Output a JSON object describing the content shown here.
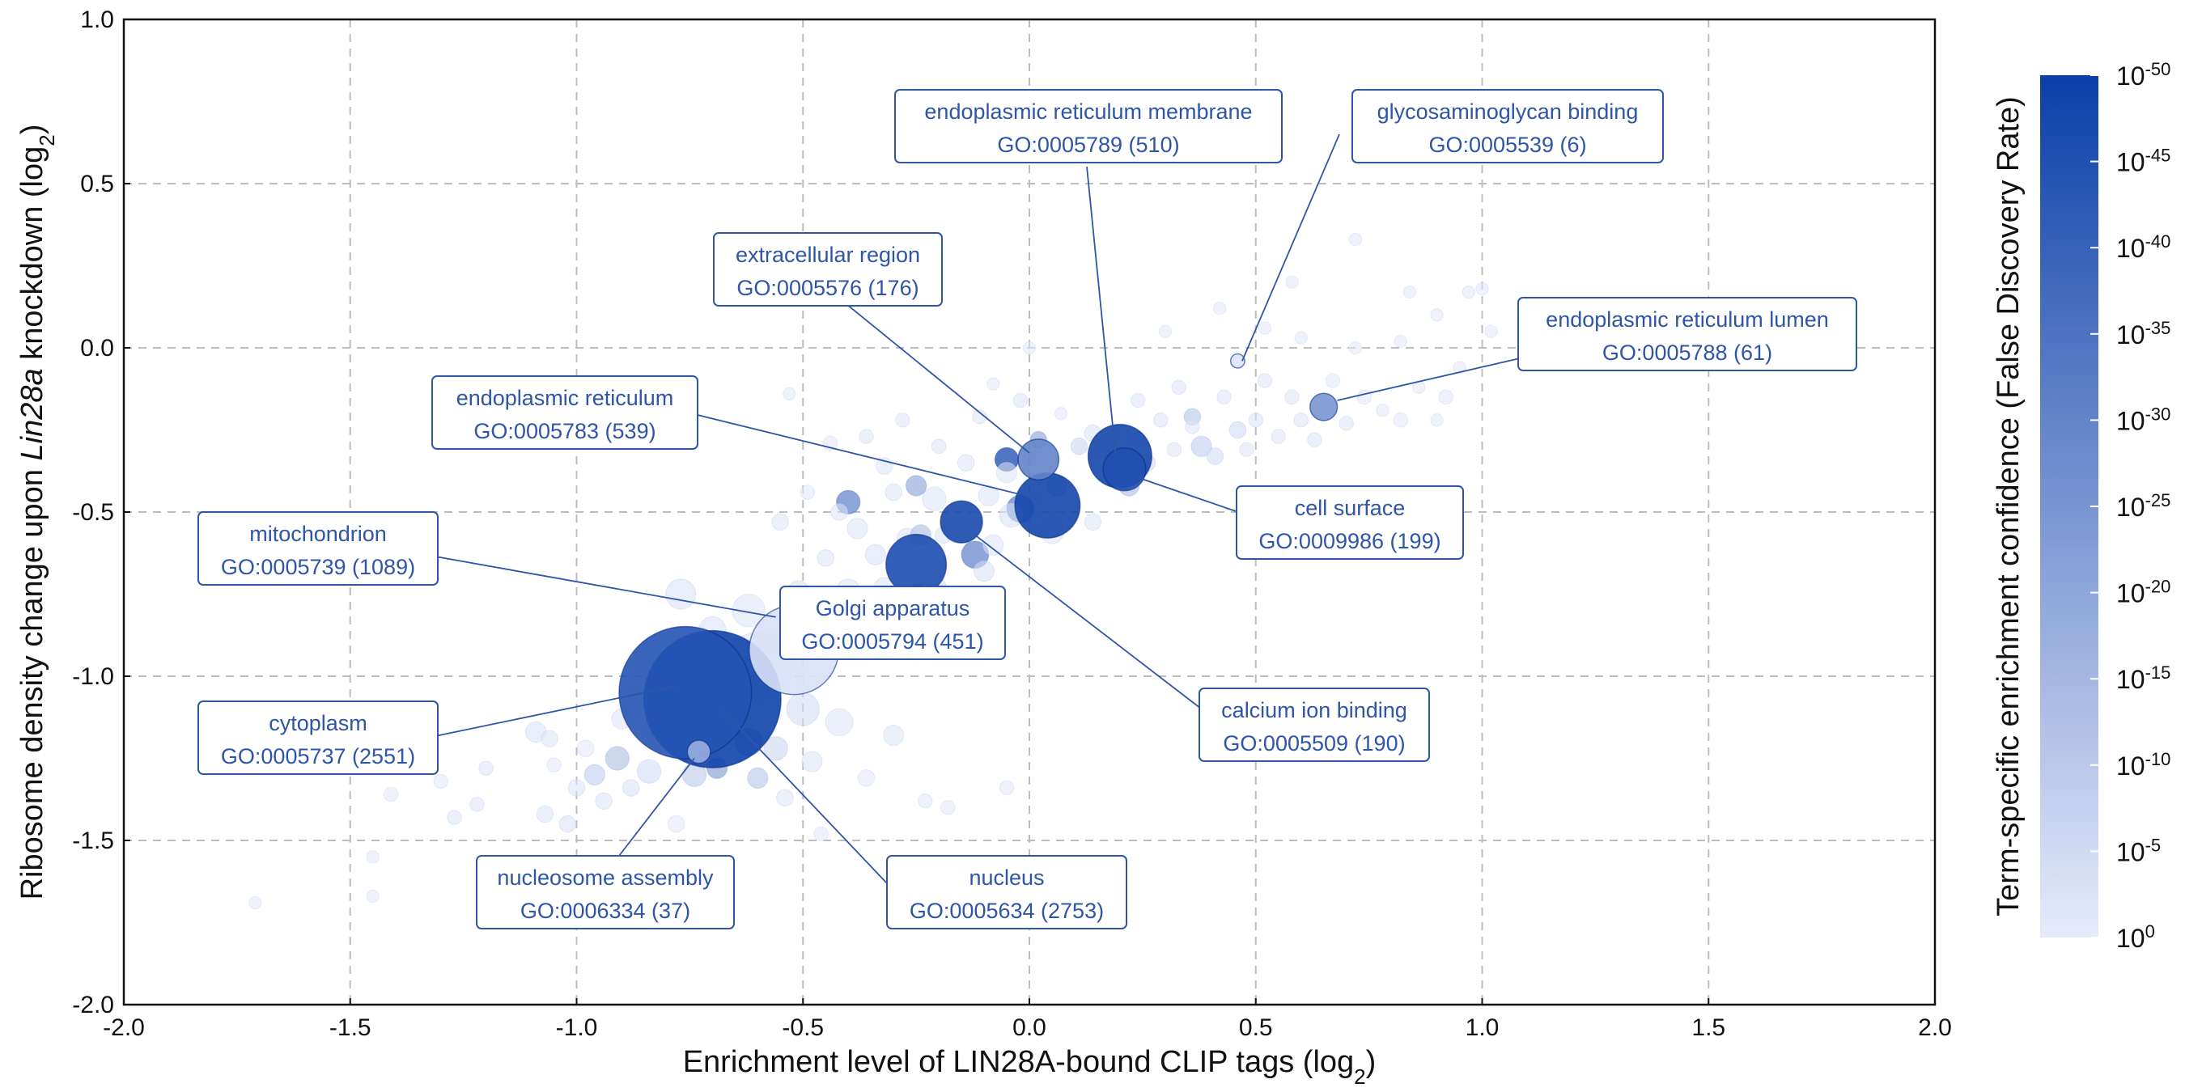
{
  "chart_data": {
    "type": "scatter",
    "title": "",
    "xlabel": "Enrichment level of LIN28A-bound CLIP tags (log2)",
    "ylabel": "Ribosome density change upon Lin28a knockdown (log2)",
    "xlim": [
      -2.0,
      2.0
    ],
    "ylim": [
      -2.0,
      1.0
    ],
    "x_ticks": [
      "-2.0",
      "-1.5",
      "-1.0",
      "-0.5",
      "0.0",
      "0.5",
      "1.0",
      "1.5",
      "2.0"
    ],
    "y_ticks": [
      "1.0",
      "0.5",
      "0.0",
      "-0.5",
      "-1.0",
      "-1.5",
      "-2.0"
    ],
    "grid": true,
    "size_encodes": "number of genes in term",
    "color_encodes": "Term-specific enrichment confidence (False Discovery Rate)",
    "colorbar": {
      "label": "Term-specific enrichment confidence (False Discovery Rate)",
      "ticks": [
        {
          "base": "10",
          "exp": "-50",
          "log10": -50
        },
        {
          "base": "10",
          "exp": "-45",
          "log10": -45
        },
        {
          "base": "10",
          "exp": "-40",
          "log10": -40
        },
        {
          "base": "10",
          "exp": "-35",
          "log10": -35
        },
        {
          "base": "10",
          "exp": "-30",
          "log10": -30
        },
        {
          "base": "10",
          "exp": "-25",
          "log10": -25
        },
        {
          "base": "10",
          "exp": "-20",
          "log10": -20
        },
        {
          "base": "10",
          "exp": "-15",
          "log10": -15
        },
        {
          "base": "10",
          "exp": "-10",
          "log10": -10
        },
        {
          "base": "10",
          "exp": "-5",
          "log10": -5
        },
        {
          "base": "10",
          "exp": "0",
          "log10": 0
        }
      ],
      "color_low": "#e6ebfb",
      "color_high": "#0b3fa8"
    },
    "annotated_terms": [
      {
        "name": "endoplasmic reticulum membrane",
        "id": "GO:0005789 (510)",
        "x": 0.2,
        "y": -0.33,
        "genes": 510,
        "log10_fdr": -48
      },
      {
        "name": "glycosaminoglycan binding",
        "id": "GO:0005539 (6)",
        "x": 0.46,
        "y": -0.04,
        "genes": 6,
        "log10_fdr": -2
      },
      {
        "name": "extracellular region",
        "id": "GO:0005576 (176)",
        "x": 0.02,
        "y": -0.34,
        "genes": 176,
        "log10_fdr": -30
      },
      {
        "name": "endoplasmic reticulum lumen",
        "id": "GO:0005788 (61)",
        "x": 0.65,
        "y": -0.18,
        "genes": 61,
        "log10_fdr": -25
      },
      {
        "name": "endoplasmic reticulum",
        "id": "GO:0005783 (539)",
        "x": 0.04,
        "y": -0.48,
        "genes": 539,
        "log10_fdr": -48
      },
      {
        "name": "cell surface",
        "id": "GO:0009986 (199)",
        "x": 0.21,
        "y": -0.37,
        "genes": 199,
        "log10_fdr": -45
      },
      {
        "name": "mitochondrion",
        "id": "GO:0005739 (1089)",
        "x": -0.52,
        "y": -0.92,
        "genes": 1089,
        "log10_fdr": -3
      },
      {
        "name": "Golgi apparatus",
        "id": "GO:0005794 (451)",
        "x": -0.25,
        "y": -0.66,
        "genes": 451,
        "log10_fdr": -46
      },
      {
        "name": "cytoplasm",
        "id": "GO:0005737 (2551)",
        "x": -0.76,
        "y": -1.05,
        "genes": 2551,
        "log10_fdr": -44
      },
      {
        "name": "calcium ion binding",
        "id": "GO:0005509 (190)",
        "x": -0.15,
        "y": -0.53,
        "genes": 190,
        "log10_fdr": -47
      },
      {
        "name": "nucleosome assembly",
        "id": "GO:0006334 (37)",
        "x": -0.73,
        "y": -1.23,
        "genes": 37,
        "log10_fdr": -18
      },
      {
        "name": "nucleus",
        "id": "GO:0005634 (2753)",
        "x": -0.7,
        "y": -1.07,
        "genes": 2753,
        "log10_fdr": -49
      }
    ],
    "other_terms": [
      {
        "x": -1.71,
        "y": -1.69,
        "genes": 3,
        "log10_fdr": -1
      },
      {
        "x": -1.45,
        "y": -1.55,
        "genes": 3,
        "log10_fdr": -1
      },
      {
        "x": -1.45,
        "y": -1.67,
        "genes": 3,
        "log10_fdr": -1
      },
      {
        "x": -1.41,
        "y": -1.36,
        "genes": 6,
        "log10_fdr": -1
      },
      {
        "x": -1.3,
        "y": -1.32,
        "genes": 6,
        "log10_fdr": -1
      },
      {
        "x": -1.27,
        "y": -1.43,
        "genes": 6,
        "log10_fdr": -2
      },
      {
        "x": -1.22,
        "y": -1.39,
        "genes": 6,
        "log10_fdr": -2
      },
      {
        "x": -1.2,
        "y": -1.28,
        "genes": 6,
        "log10_fdr": -2
      },
      {
        "x": -1.09,
        "y": -1.17,
        "genes": 25,
        "log10_fdr": -3
      },
      {
        "x": -1.06,
        "y": -1.19,
        "genes": 12,
        "log10_fdr": -2
      },
      {
        "x": -1.07,
        "y": -1.42,
        "genes": 12,
        "log10_fdr": -2
      },
      {
        "x": -1.05,
        "y": -1.27,
        "genes": 6,
        "log10_fdr": -1
      },
      {
        "x": -1.02,
        "y": -1.45,
        "genes": 12,
        "log10_fdr": -3
      },
      {
        "x": -1.0,
        "y": -1.34,
        "genes": 12,
        "log10_fdr": -2
      },
      {
        "x": -0.98,
        "y": -1.22,
        "genes": 12,
        "log10_fdr": -1
      },
      {
        "x": -0.96,
        "y": -1.3,
        "genes": 25,
        "log10_fdr": -8
      },
      {
        "x": -0.94,
        "y": -1.38,
        "genes": 12,
        "log10_fdr": -2
      },
      {
        "x": -0.9,
        "y": -1.13,
        "genes": 25,
        "log10_fdr": -2
      },
      {
        "x": -0.91,
        "y": -1.25,
        "genes": 40,
        "log10_fdr": -12
      },
      {
        "x": -0.88,
        "y": -1.34,
        "genes": 12,
        "log10_fdr": -3
      },
      {
        "x": -0.87,
        "y": -1.08,
        "genes": 40,
        "log10_fdr": -3
      },
      {
        "x": -0.83,
        "y": -1.16,
        "genes": 25,
        "log10_fdr": -2
      },
      {
        "x": -0.84,
        "y": -1.29,
        "genes": 40,
        "log10_fdr": -4
      },
      {
        "x": -0.8,
        "y": -1.0,
        "genes": 60,
        "log10_fdr": -2
      },
      {
        "x": -0.78,
        "y": -1.45,
        "genes": 12,
        "log10_fdr": -1
      },
      {
        "x": -0.74,
        "y": -1.3,
        "genes": 40,
        "log10_fdr": -9
      },
      {
        "x": -0.7,
        "y": -1.18,
        "genes": 60,
        "log10_fdr": -10
      },
      {
        "x": -0.69,
        "y": -1.28,
        "genes": 25,
        "log10_fdr": -20
      },
      {
        "x": -0.62,
        "y": -1.2,
        "genes": 60,
        "log10_fdr": -18
      },
      {
        "x": -0.6,
        "y": -1.31,
        "genes": 25,
        "log10_fdr": -10
      },
      {
        "x": -0.56,
        "y": -1.22,
        "genes": 40,
        "log10_fdr": -6
      },
      {
        "x": -0.54,
        "y": -1.37,
        "genes": 12,
        "log10_fdr": -2
      },
      {
        "x": -0.5,
        "y": -1.1,
        "genes": 100,
        "log10_fdr": -4
      },
      {
        "x": -0.48,
        "y": -1.26,
        "genes": 25,
        "log10_fdr": -2
      },
      {
        "x": -0.46,
        "y": -1.48,
        "genes": 6,
        "log10_fdr": -1
      },
      {
        "x": -0.42,
        "y": -1.14,
        "genes": 60,
        "log10_fdr": -2
      },
      {
        "x": -0.36,
        "y": -1.31,
        "genes": 12,
        "log10_fdr": -1
      },
      {
        "x": -0.3,
        "y": -1.18,
        "genes": 25,
        "log10_fdr": -2
      },
      {
        "x": -0.23,
        "y": -1.38,
        "genes": 6,
        "log10_fdr": -1
      },
      {
        "x": -0.18,
        "y": -1.4,
        "genes": 6,
        "log10_fdr": -1
      },
      {
        "x": -0.05,
        "y": -1.34,
        "genes": 6,
        "log10_fdr": -1
      },
      {
        "x": -0.6,
        "y": -0.97,
        "genes": 600,
        "log10_fdr": -2
      },
      {
        "x": -0.82,
        "y": -0.94,
        "genes": 200,
        "log10_fdr": -2
      },
      {
        "x": -0.77,
        "y": -0.75,
        "genes": 80,
        "log10_fdr": -3
      },
      {
        "x": -0.7,
        "y": -0.86,
        "genes": 60,
        "log10_fdr": -3
      },
      {
        "x": -0.62,
        "y": -0.8,
        "genes": 100,
        "log10_fdr": -2
      },
      {
        "x": -0.58,
        "y": -0.9,
        "genes": 60,
        "log10_fdr": -2
      },
      {
        "x": -0.52,
        "y": -0.86,
        "genes": 40,
        "log10_fdr": -2
      },
      {
        "x": -0.44,
        "y": -0.87,
        "genes": 60,
        "log10_fdr": -2
      },
      {
        "x": -0.36,
        "y": -0.86,
        "genes": 40,
        "log10_fdr": -3
      },
      {
        "x": -0.4,
        "y": -0.74,
        "genes": 40,
        "log10_fdr": -2
      },
      {
        "x": -0.32,
        "y": -0.73,
        "genes": 25,
        "log10_fdr": -2
      },
      {
        "x": -0.34,
        "y": -0.63,
        "genes": 25,
        "log10_fdr": -3
      },
      {
        "x": -0.27,
        "y": -0.58,
        "genes": 25,
        "log10_fdr": -3
      },
      {
        "x": -0.19,
        "y": -0.57,
        "genes": 12,
        "log10_fdr": -2
      },
      {
        "x": -0.45,
        "y": -0.64,
        "genes": 12,
        "log10_fdr": -2
      },
      {
        "x": -0.51,
        "y": -0.74,
        "genes": 25,
        "log10_fdr": -3
      },
      {
        "x": -0.55,
        "y": -0.53,
        "genes": 12,
        "log10_fdr": -2
      },
      {
        "x": -0.49,
        "y": -0.44,
        "genes": 6,
        "log10_fdr": -1
      },
      {
        "x": -0.42,
        "y": -0.5,
        "genes": 12,
        "log10_fdr": -2
      },
      {
        "x": -0.38,
        "y": -0.55,
        "genes": 25,
        "log10_fdr": -2
      },
      {
        "x": -0.3,
        "y": -0.44,
        "genes": 12,
        "log10_fdr": -2
      },
      {
        "x": -0.21,
        "y": -0.73,
        "genes": 40,
        "log10_fdr": -4
      },
      {
        "x": -0.1,
        "y": -0.68,
        "genes": 25,
        "log10_fdr": -3
      },
      {
        "x": -0.08,
        "y": -0.6,
        "genes": 25,
        "log10_fdr": -2
      },
      {
        "x": -0.04,
        "y": -0.51,
        "genes": 40,
        "log10_fdr": -3
      },
      {
        "x": 0.05,
        "y": -0.56,
        "genes": 40,
        "log10_fdr": -2
      },
      {
        "x": 0.14,
        "y": -0.53,
        "genes": 12,
        "log10_fdr": -2
      },
      {
        "x": -0.09,
        "y": -0.45,
        "genes": 25,
        "log10_fdr": -2
      },
      {
        "x": -0.21,
        "y": -0.46,
        "genes": 40,
        "log10_fdr": -2
      },
      {
        "x": -0.53,
        "y": -0.14,
        "genes": 3,
        "log10_fdr": -1
      },
      {
        "x": -0.44,
        "y": -0.29,
        "genes": 6,
        "log10_fdr": -1
      },
      {
        "x": -0.36,
        "y": -0.27,
        "genes": 6,
        "log10_fdr": -2
      },
      {
        "x": -0.28,
        "y": -0.22,
        "genes": 6,
        "log10_fdr": -2
      },
      {
        "x": -0.2,
        "y": -0.3,
        "genes": 6,
        "log10_fdr": -2
      },
      {
        "x": -0.11,
        "y": -0.21,
        "genes": 6,
        "log10_fdr": -2
      },
      {
        "x": -0.08,
        "y": -0.11,
        "genes": 3,
        "log10_fdr": -1
      },
      {
        "x": -0.02,
        "y": -0.16,
        "genes": 6,
        "log10_fdr": -2
      },
      {
        "x": 0.07,
        "y": -0.2,
        "genes": 3,
        "log10_fdr": -1
      },
      {
        "x": -0.32,
        "y": -0.36,
        "genes": 12,
        "log10_fdr": -2
      },
      {
        "x": -0.14,
        "y": -0.35,
        "genes": 12,
        "log10_fdr": -2
      },
      {
        "x": -0.05,
        "y": -0.38,
        "genes": 25,
        "log10_fdr": -2
      },
      {
        "x": -0.24,
        "y": -0.57,
        "genes": 25,
        "log10_fdr": -12
      },
      {
        "x": -0.25,
        "y": -0.42,
        "genes": 25,
        "log10_fdr": -18
      },
      {
        "x": -0.12,
        "y": -0.63,
        "genes": 60,
        "log10_fdr": -28
      },
      {
        "x": -0.05,
        "y": -0.34,
        "genes": 40,
        "log10_fdr": -40
      },
      {
        "x": -0.02,
        "y": -0.49,
        "genes": 60,
        "log10_fdr": -28
      },
      {
        "x": -0.4,
        "y": -0.47,
        "genes": 40,
        "log10_fdr": -28
      },
      {
        "x": 0.02,
        "y": -0.28,
        "genes": 12,
        "log10_fdr": -18
      },
      {
        "x": 0.06,
        "y": -0.42,
        "genes": 25,
        "log10_fdr": -14
      },
      {
        "x": 0.11,
        "y": -0.3,
        "genes": 12,
        "log10_fdr": -6
      },
      {
        "x": 0.14,
        "y": -0.26,
        "genes": 12,
        "log10_fdr": -3
      },
      {
        "x": 0.17,
        "y": -0.31,
        "genes": 12,
        "log10_fdr": -3
      },
      {
        "x": 0.22,
        "y": -0.42,
        "genes": 25,
        "log10_fdr": -12
      },
      {
        "x": 0.24,
        "y": -0.28,
        "genes": 6,
        "log10_fdr": -3
      },
      {
        "x": 0.24,
        "y": -0.16,
        "genes": 6,
        "log10_fdr": -2
      },
      {
        "x": 0.26,
        "y": -0.35,
        "genes": 12,
        "log10_fdr": -4
      },
      {
        "x": 0.29,
        "y": -0.22,
        "genes": 6,
        "log10_fdr": -2
      },
      {
        "x": 0.32,
        "y": -0.31,
        "genes": 6,
        "log10_fdr": -2
      },
      {
        "x": 0.33,
        "y": -0.12,
        "genes": 6,
        "log10_fdr": -2
      },
      {
        "x": 0.36,
        "y": -0.24,
        "genes": 6,
        "log10_fdr": -2
      },
      {
        "x": 0.38,
        "y": -0.3,
        "genes": 25,
        "log10_fdr": -8
      },
      {
        "x": 0.36,
        "y": -0.21,
        "genes": 12,
        "log10_fdr": -10
      },
      {
        "x": 0.41,
        "y": -0.33,
        "genes": 12,
        "log10_fdr": -4
      },
      {
        "x": 0.43,
        "y": -0.15,
        "genes": 6,
        "log10_fdr": -2
      },
      {
        "x": 0.46,
        "y": -0.25,
        "genes": 12,
        "log10_fdr": -5
      },
      {
        "x": 0.48,
        "y": -0.31,
        "genes": 6,
        "log10_fdr": -2
      },
      {
        "x": 0.5,
        "y": -0.22,
        "genes": 6,
        "log10_fdr": -2
      },
      {
        "x": 0.52,
        "y": -0.1,
        "genes": 6,
        "log10_fdr": -2
      },
      {
        "x": 0.55,
        "y": -0.27,
        "genes": 6,
        "log10_fdr": -2
      },
      {
        "x": 0.58,
        "y": -0.15,
        "genes": 6,
        "log10_fdr": -2
      },
      {
        "x": 0.6,
        "y": -0.22,
        "genes": 6,
        "log10_fdr": -2
      },
      {
        "x": 0.63,
        "y": -0.28,
        "genes": 6,
        "log10_fdr": -2
      },
      {
        "x": 0.67,
        "y": -0.1,
        "genes": 6,
        "log10_fdr": -1
      },
      {
        "x": 0.7,
        "y": -0.23,
        "genes": 6,
        "log10_fdr": -2
      },
      {
        "x": 0.74,
        "y": -0.15,
        "genes": 6,
        "log10_fdr": -1
      },
      {
        "x": 0.78,
        "y": -0.19,
        "genes": 3,
        "log10_fdr": -1
      },
      {
        "x": 0.82,
        "y": -0.22,
        "genes": 6,
        "log10_fdr": -1
      },
      {
        "x": 0.86,
        "y": -0.12,
        "genes": 3,
        "log10_fdr": -1
      },
      {
        "x": 0.9,
        "y": -0.22,
        "genes": 3,
        "log10_fdr": -1
      },
      {
        "x": 0.92,
        "y": -0.15,
        "genes": 6,
        "log10_fdr": -1
      },
      {
        "x": 0.95,
        "y": -0.06,
        "genes": 3,
        "log10_fdr": -1
      },
      {
        "x": 0.97,
        "y": 0.17,
        "genes": 3,
        "log10_fdr": -1
      },
      {
        "x": 1.0,
        "y": 0.18,
        "genes": 3,
        "log10_fdr": -1
      },
      {
        "x": 1.02,
        "y": 0.05,
        "genes": 3,
        "log10_fdr": -1
      },
      {
        "x": 0.9,
        "y": 0.1,
        "genes": 3,
        "log10_fdr": -1
      },
      {
        "x": 0.82,
        "y": 0.02,
        "genes": 3,
        "log10_fdr": -1
      },
      {
        "x": 0.72,
        "y": 0.0,
        "genes": 3,
        "log10_fdr": -1
      },
      {
        "x": 0.6,
        "y": 0.03,
        "genes": 3,
        "log10_fdr": -1
      },
      {
        "x": 0.52,
        "y": 0.06,
        "genes": 3,
        "log10_fdr": -1
      },
      {
        "x": 0.42,
        "y": 0.12,
        "genes": 3,
        "log10_fdr": -1
      },
      {
        "x": 0.3,
        "y": 0.05,
        "genes": 3,
        "log10_fdr": -1
      },
      {
        "x": 0.58,
        "y": 0.2,
        "genes": 3,
        "log10_fdr": -1
      },
      {
        "x": 0.72,
        "y": 0.33,
        "genes": 3,
        "log10_fdr": -1
      },
      {
        "x": 0.84,
        "y": 0.17,
        "genes": 3,
        "log10_fdr": -1
      },
      {
        "x": 0.0,
        "y": 0.0,
        "genes": 3,
        "log10_fdr": -1
      }
    ]
  }
}
